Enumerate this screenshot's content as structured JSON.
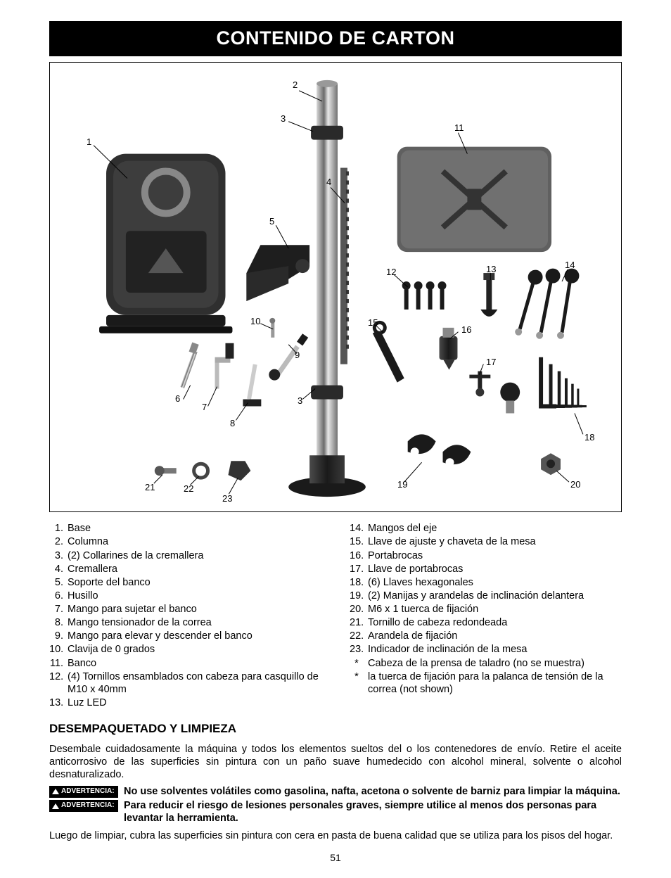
{
  "title": "CONTENIDO DE CARTON",
  "page_number": "51",
  "callouts": [
    "1",
    "2",
    "3",
    "4",
    "5",
    "6",
    "7",
    "8",
    "9",
    "10",
    "11",
    "12",
    "13",
    "14",
    "15",
    "16",
    "17",
    "18",
    "19",
    "20",
    "21",
    "22",
    "23",
    "3"
  ],
  "parts_left": [
    {
      "n": "1.",
      "t": "Base"
    },
    {
      "n": "2.",
      "t": "Columna"
    },
    {
      "n": "3.",
      "t": "(2) Collarines de la cremallera"
    },
    {
      "n": "4.",
      "t": "Cremallera"
    },
    {
      "n": "5.",
      "t": "Soporte del banco"
    },
    {
      "n": "6.",
      "t": "Husillo"
    },
    {
      "n": "7.",
      "t": "Mango para sujetar el banco"
    },
    {
      "n": "8.",
      "t": "Mango tensionador de la correa"
    },
    {
      "n": "9.",
      "t": "Mango para elevar y descender el banco"
    },
    {
      "n": "10.",
      "t": "Clavija de 0 grados"
    },
    {
      "n": "11.",
      "t": "Banco"
    },
    {
      "n": "12.",
      "t": "(4) Tornillos ensamblados con cabeza para casquillo de M10 x 40mm"
    },
    {
      "n": "13.",
      "t": "Luz LED"
    }
  ],
  "parts_right": [
    {
      "n": "14.",
      "t": "Mangos del eje"
    },
    {
      "n": "15.",
      "t": "Llave de ajuste y chaveta de la mesa"
    },
    {
      "n": "16.",
      "t": "Portabrocas"
    },
    {
      "n": "17.",
      "t": "Llave de portabrocas"
    },
    {
      "n": "18.",
      "t": "(6) Llaves hexagonales"
    },
    {
      "n": "19.",
      "t": "(2) Manijas y arandelas de inclinación delantera"
    },
    {
      "n": "20.",
      "t": "M6 x 1 tuerca de fijación"
    },
    {
      "n": "21.",
      "t": "Tornillo de cabeza redondeada"
    },
    {
      "n": "22.",
      "t": "Arandela de fijación"
    },
    {
      "n": "23.",
      "t": "Indicador de inclinación de la mesa"
    },
    {
      "n": "*",
      "t": "Cabeza de la prensa de taladro (no se muestra)"
    },
    {
      "n": "*",
      "t": "la tuerca de fijación para la palanca de tensión de la correa (not shown)"
    }
  ],
  "section_heading": "DESEMPAQUETADO Y LIMPIEZA",
  "intro_paragraph": "Desembale cuidadosamente la máquina y todos los elementos sueltos del o los contenedores de envío. Retire el aceite anticorrosivo de las superficies sin pintura con un paño suave humedecido con alcohol mineral, solvente o alcohol desnaturalizado.",
  "warning_label": "ADVERTENCIA:",
  "warning1": "No use solventes volátiles como gasolina, nafta, acetona o solvente de barniz para limpiar la máquina.",
  "warning2": "Para reducir el riesgo de lesiones personales graves, siempre utilice al menos dos personas para levantar la herramienta.",
  "closing_paragraph": "Luego de limpiar, cubra las superficies sin pintura con cera en pasta de buena calidad que se utiliza para los pisos del hogar.",
  "diagram_style": {
    "border_color": "#000000",
    "background": "#ffffff",
    "part_fill": "#5a5a5a",
    "part_dark": "#2b2b2b",
    "part_light": "#bfbfbf",
    "column_gradient_stops": [
      "#d8d8d8",
      "#6a6a6a",
      "#e8e8e8",
      "#707070"
    ],
    "callout_line": "#000000",
    "callout_fontsize": 13
  }
}
